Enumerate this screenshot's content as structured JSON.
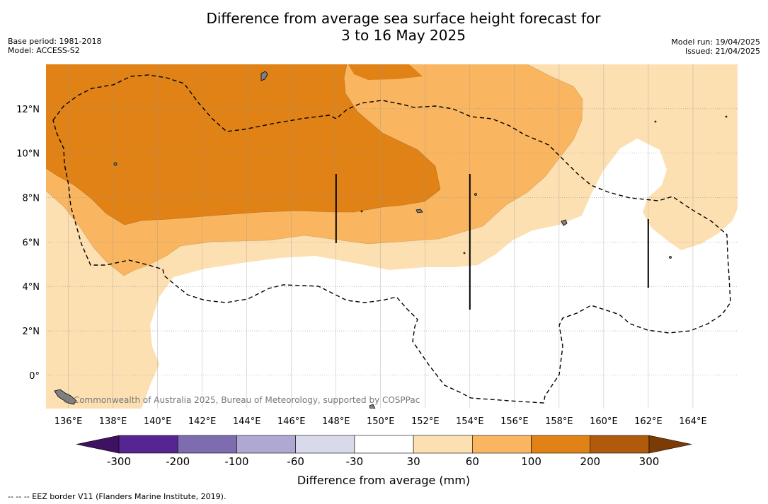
{
  "title": {
    "line1": "Difference from average sea surface height forecast for",
    "line2": "3 to 16 May 2025"
  },
  "meta_left": {
    "base_period": "Base period: 1981-2018",
    "model": "Model: ACCESS-S2"
  },
  "meta_right": {
    "model_run": "Model run: 19/04/2025",
    "issued": "Issued: 21/04/2025"
  },
  "map": {
    "lon_range": [
      135,
      166
    ],
    "lat_range": [
      -1.5,
      14
    ],
    "lon_labels": [
      "136°E",
      "138°E",
      "140°E",
      "142°E",
      "144°E",
      "146°E",
      "148°E",
      "150°E",
      "152°E",
      "154°E",
      "156°E",
      "158°E",
      "160°E",
      "162°E",
      "164°E"
    ],
    "lat_labels": [
      "12°N",
      "10°N",
      "8°N",
      "6°N",
      "4°N",
      "2°N",
      "0°"
    ],
    "attribution": "© Commonwealth of Australia 2025, Bureau of Meteorology, supported by COSPPac",
    "colors": {
      "cat_30_60": "#fde0b2",
      "cat_60_100": "#f9b55f",
      "cat_100_200": "#e08216",
      "land": "#808080",
      "grid": "#999999"
    }
  },
  "colorbar": {
    "title": "Difference from average (mm)",
    "tick_labels": [
      "-300",
      "-200",
      "-100",
      "-60",
      "-30",
      "30",
      "60",
      "100",
      "200",
      "300"
    ],
    "colors": [
      "#3e1163",
      "#572592",
      "#7d6caf",
      "#aea8d2",
      "#d9d9ec",
      "#ffffff",
      "#fde0b2",
      "#f9b55f",
      "#e08216",
      "#b05a0b",
      "#7a3b05"
    ]
  },
  "footnote": "--  --  -- EEZ border V11 (Flanders Marine Institute, 2019)."
}
